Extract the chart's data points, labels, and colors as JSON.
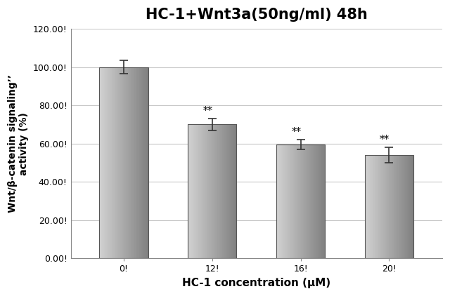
{
  "title": "HC-1+Wnt3a(50ng/ml) 48h",
  "xlabel": "HC-1 concentration (μM)",
  "ylabel": "Wnt/β-catenin signaling\"\"\nactivity (%)",
  "categories": [
    "0!",
    "12!",
    "16!",
    "20!"
  ],
  "values": [
    100.0,
    70.0,
    59.5,
    54.0
  ],
  "errors": [
    3.5,
    3.0,
    2.5,
    4.0
  ],
  "bar_color_light": "#c8c8c8",
  "bar_color_dark": "#888888",
  "bar_edge_color": "#555555",
  "significance": [
    false,
    true,
    true,
    true
  ],
  "sig_label": "**",
  "ylim": [
    0,
    120
  ],
  "yticks": [
    0,
    20,
    40,
    60,
    80,
    100,
    120
  ],
  "ytick_labels": [
    "0.00!",
    "20.00!",
    "40.00!",
    "60.00!",
    "80.00!",
    "100.00!",
    "120.00!"
  ],
  "title_fontsize": 15,
  "axis_fontsize": 11,
  "tick_fontsize": 9,
  "sig_fontsize": 10,
  "background_color": "#ffffff",
  "plot_bg_color": "#ffffff",
  "grid_color": "#c8c8c8",
  "bar_width": 0.55
}
